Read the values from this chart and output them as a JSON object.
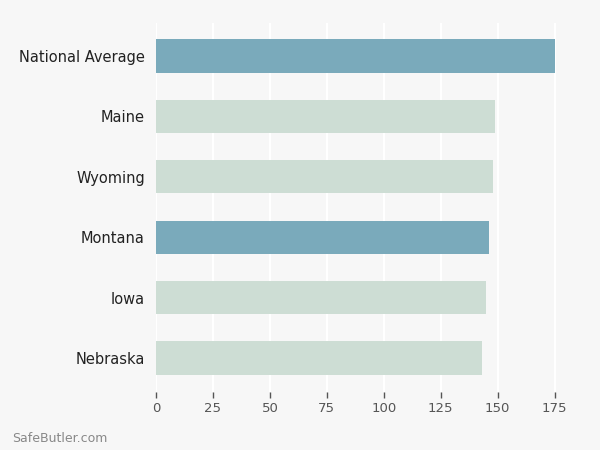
{
  "categories": [
    "Nebraska",
    "Iowa",
    "Montana",
    "Wyoming",
    "Maine",
    "National Average"
  ],
  "values": [
    143,
    145,
    146,
    148,
    149,
    175
  ],
  "bar_colors": [
    "#cdddd4",
    "#cdddd4",
    "#7aaabb",
    "#cdddd4",
    "#cdddd4",
    "#7aaabb"
  ],
  "xlim": [
    0,
    187
  ],
  "xticks": [
    0,
    25,
    50,
    75,
    100,
    125,
    150,
    175
  ],
  "background_color": "#f7f7f7",
  "bar_height": 0.55,
  "gridcolor": "#ffffff",
  "footer_text": "SafeButler.com",
  "tick_color": "#555555",
  "label_color": "#222222"
}
